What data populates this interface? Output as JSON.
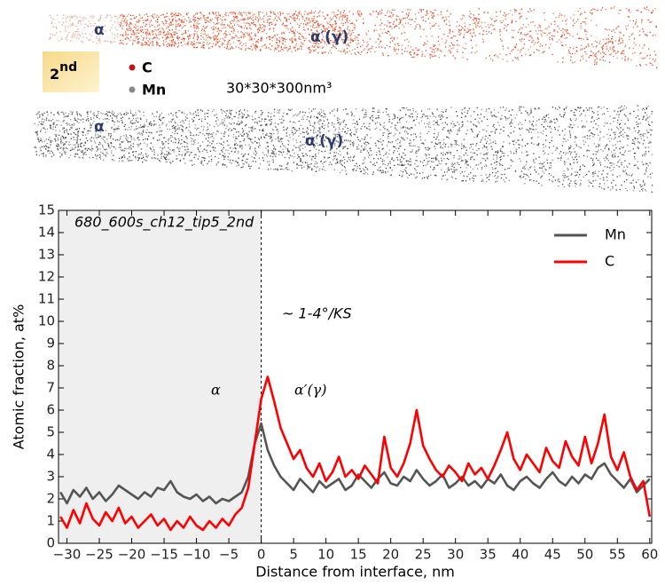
{
  "reconstruction": {
    "tip1_alpha": "α",
    "tip1_alpha_prime": "α′(γ)",
    "badge_number": "2",
    "badge_suffix": "nd",
    "legend_c": "C",
    "legend_mn": "Mn",
    "volume": "30*30*300nm³",
    "tip2_alpha": "α",
    "tip2_alpha_prime": "α′(γ)"
  },
  "chart_data": {
    "type": "line",
    "xlabel": "Distance from interface, nm",
    "ylabel": "Atomic fraction, at%",
    "annotations": {
      "sample": "680_600s_ch12_tip5_2nd",
      "misorientation": "~ 1-4°/KS",
      "left_phase": "α",
      "right_phase": "α′(γ)"
    },
    "interface": 0,
    "xlim": [
      -31.3,
      60.3
    ],
    "ylim": [
      0,
      15
    ],
    "xticks": [
      {
        "value": -30,
        "label": "−30"
      },
      {
        "value": -25,
        "label": "−25"
      },
      {
        "value": -20,
        "label": "−20"
      },
      {
        "value": -15,
        "label": "−15"
      },
      {
        "value": -10,
        "label": "−10"
      },
      {
        "value": -5,
        "label": "−5"
      },
      0,
      5,
      10,
      15,
      20,
      25,
      30,
      35,
      40,
      45,
      50,
      55,
      60
    ],
    "yticks": [
      0,
      1,
      2,
      3,
      4,
      5,
      6,
      7,
      8,
      9,
      10,
      11,
      12,
      13,
      14,
      15
    ],
    "legend": "upper right",
    "x": [
      -31,
      -30,
      -29,
      -28,
      -27,
      -26,
      -25,
      -24,
      -23,
      -22,
      -21,
      -20,
      -19,
      -18,
      -17,
      -16,
      -15,
      -14,
      -13,
      -12,
      -11,
      -10,
      -9,
      -8,
      -7,
      -6,
      -5,
      -4,
      -3,
      -2,
      -1,
      0,
      1,
      2,
      3,
      4,
      5,
      6,
      7,
      8,
      9,
      10,
      11,
      12,
      13,
      14,
      15,
      16,
      17,
      18,
      19,
      20,
      21,
      22,
      23,
      24,
      25,
      26,
      27,
      28,
      29,
      30,
      31,
      32,
      33,
      34,
      35,
      36,
      37,
      38,
      39,
      40,
      41,
      42,
      43,
      44,
      45,
      46,
      47,
      48,
      49,
      50,
      51,
      52,
      53,
      54,
      55,
      56,
      57,
      58,
      59,
      60
    ],
    "series": [
      {
        "name": "Mn",
        "color": "#555555",
        "values": [
          2.3,
          1.8,
          2.4,
          2.1,
          2.5,
          2.0,
          2.3,
          1.9,
          2.2,
          2.6,
          2.4,
          2.2,
          2.0,
          2.3,
          2.1,
          2.5,
          2.4,
          2.8,
          2.3,
          2.1,
          2.0,
          2.2,
          1.9,
          2.1,
          1.8,
          2.0,
          1.9,
          2.1,
          2.3,
          3.0,
          4.5,
          5.4,
          4.2,
          3.5,
          3.0,
          2.7,
          2.4,
          2.9,
          2.6,
          2.3,
          2.8,
          2.5,
          2.7,
          2.9,
          2.4,
          2.6,
          3.1,
          2.8,
          2.5,
          2.9,
          3.2,
          2.7,
          2.6,
          3.0,
          2.8,
          3.3,
          2.9,
          2.6,
          2.8,
          3.1,
          2.5,
          2.7,
          3.0,
          2.6,
          2.8,
          2.5,
          2.9,
          2.7,
          3.1,
          2.6,
          2.4,
          2.8,
          3.0,
          2.7,
          2.5,
          2.9,
          3.2,
          2.8,
          2.6,
          3.0,
          2.7,
          3.1,
          2.9,
          3.4,
          3.6,
          3.1,
          2.8,
          2.5,
          2.9,
          2.3,
          2.6,
          2.9
        ]
      },
      {
        "name": "C",
        "color": "#ff0000",
        "values": [
          1.2,
          0.7,
          1.5,
          0.9,
          1.8,
          1.1,
          0.8,
          1.4,
          1.0,
          1.6,
          0.9,
          1.2,
          0.7,
          1.0,
          1.3,
          0.8,
          1.1,
          0.6,
          1.0,
          0.7,
          1.2,
          0.8,
          0.6,
          1.0,
          0.7,
          1.1,
          0.8,
          1.3,
          1.6,
          2.5,
          4.5,
          6.5,
          7.5,
          6.4,
          5.2,
          4.5,
          3.8,
          4.2,
          3.4,
          3.0,
          3.6,
          2.8,
          3.2,
          3.9,
          3.0,
          3.3,
          2.9,
          3.5,
          3.1,
          2.7,
          4.8,
          3.4,
          3.0,
          3.6,
          4.5,
          6.0,
          4.4,
          3.8,
          3.3,
          3.0,
          3.5,
          3.2,
          2.8,
          3.6,
          3.1,
          3.4,
          2.9,
          3.5,
          4.2,
          5.0,
          3.8,
          3.3,
          4.0,
          3.6,
          3.2,
          4.3,
          3.7,
          3.4,
          4.6,
          3.9,
          3.5,
          4.8,
          3.6,
          4.5,
          5.8,
          3.9,
          3.3,
          4.1,
          3.0,
          2.4,
          2.8,
          1.2
        ]
      }
    ]
  }
}
